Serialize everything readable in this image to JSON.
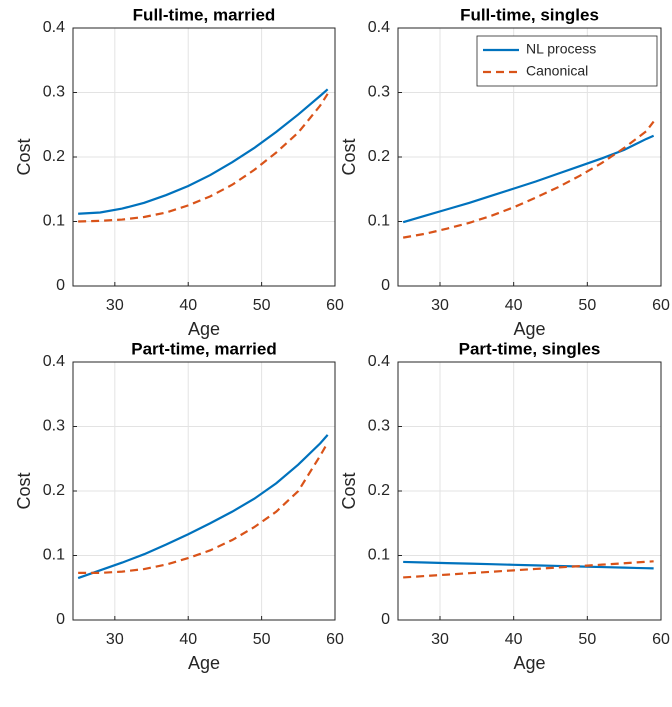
{
  "chart_data": [
    {
      "type": "line",
      "title": "Full-time, married",
      "xlabel": "Age",
      "ylabel": "Cost",
      "x": [
        25,
        28,
        31,
        34,
        37,
        40,
        43,
        46,
        49,
        52,
        55,
        58,
        59
      ],
      "series": [
        {
          "name": "NL process",
          "color": "#0072BD",
          "style": "solid",
          "values": [
            0.112,
            0.114,
            0.12,
            0.129,
            0.141,
            0.155,
            0.172,
            0.192,
            0.214,
            0.239,
            0.266,
            0.295,
            0.305
          ]
        },
        {
          "name": "Canonical",
          "color": "#D95319",
          "style": "dashed",
          "values": [
            0.1,
            0.101,
            0.103,
            0.107,
            0.114,
            0.125,
            0.139,
            0.157,
            0.18,
            0.207,
            0.238,
            0.28,
            0.298
          ]
        }
      ],
      "xlim": [
        24.3,
        60
      ],
      "xticks": [
        30,
        40,
        50,
        60
      ],
      "ylim": [
        0,
        0.4
      ],
      "yticks": [
        0,
        0.1,
        0.2,
        0.3,
        0.4
      ],
      "grid": true
    },
    {
      "type": "line",
      "title": "Full-time, singles",
      "xlabel": "Age",
      "ylabel": "Cost",
      "x": [
        25,
        28,
        31,
        34,
        37,
        40,
        43,
        46,
        49,
        52,
        55,
        58,
        59
      ],
      "series": [
        {
          "name": "NL process",
          "color": "#0072BD",
          "style": "solid",
          "values": [
            0.099,
            0.109,
            0.119,
            0.129,
            0.14,
            0.151,
            0.162,
            0.174,
            0.186,
            0.198,
            0.211,
            0.228,
            0.233
          ]
        },
        {
          "name": "Canonical",
          "color": "#D95319",
          "style": "dashed",
          "values": [
            0.075,
            0.081,
            0.089,
            0.098,
            0.109,
            0.122,
            0.137,
            0.153,
            0.171,
            0.191,
            0.214,
            0.24,
            0.255
          ]
        }
      ],
      "xlim": [
        24.3,
        60
      ],
      "xticks": [
        30,
        40,
        50,
        60
      ],
      "ylim": [
        0,
        0.4
      ],
      "yticks": [
        0,
        0.1,
        0.2,
        0.3,
        0.4
      ],
      "grid": true,
      "legend": "upper right"
    },
    {
      "type": "line",
      "title": "Part-time, married",
      "xlabel": "Age",
      "ylabel": "Cost",
      "x": [
        25,
        28,
        31,
        34,
        37,
        40,
        43,
        46,
        49,
        52,
        55,
        58,
        59
      ],
      "series": [
        {
          "name": "NL process",
          "color": "#0072BD",
          "style": "solid",
          "values": [
            0.065,
            0.077,
            0.089,
            0.102,
            0.117,
            0.133,
            0.15,
            0.168,
            0.188,
            0.212,
            0.241,
            0.274,
            0.287
          ]
        },
        {
          "name": "Canonical",
          "color": "#D95319",
          "style": "dashed",
          "values": [
            0.073,
            0.073,
            0.075,
            0.079,
            0.086,
            0.096,
            0.108,
            0.124,
            0.144,
            0.168,
            0.2,
            0.255,
            0.275
          ]
        }
      ],
      "xlim": [
        24.3,
        60
      ],
      "xticks": [
        30,
        40,
        50,
        60
      ],
      "ylim": [
        0,
        0.4
      ],
      "yticks": [
        0,
        0.1,
        0.2,
        0.3,
        0.4
      ],
      "grid": true
    },
    {
      "type": "line",
      "title": "Part-time, singles",
      "xlabel": "Age",
      "ylabel": "Cost",
      "x": [
        25,
        28,
        31,
        34,
        37,
        40,
        43,
        46,
        49,
        52,
        55,
        58,
        59
      ],
      "series": [
        {
          "name": "NL process",
          "color": "#0072BD",
          "style": "solid",
          "values": [
            0.09,
            0.0891,
            0.0882,
            0.0874,
            0.0865,
            0.0856,
            0.0847,
            0.0838,
            0.0829,
            0.0821,
            0.0812,
            0.0803,
            0.08
          ]
        },
        {
          "name": "Canonical",
          "color": "#D95319",
          "style": "dashed",
          "values": [
            0.066,
            0.0682,
            0.0704,
            0.0726,
            0.0748,
            0.077,
            0.0792,
            0.0814,
            0.0836,
            0.0858,
            0.088,
            0.0903,
            0.091
          ]
        }
      ],
      "xlim": [
        24.3,
        60
      ],
      "xticks": [
        30,
        40,
        50,
        60
      ],
      "ylim": [
        0,
        0.4
      ],
      "yticks": [
        0,
        0.1,
        0.2,
        0.3,
        0.4
      ],
      "grid": true
    }
  ]
}
